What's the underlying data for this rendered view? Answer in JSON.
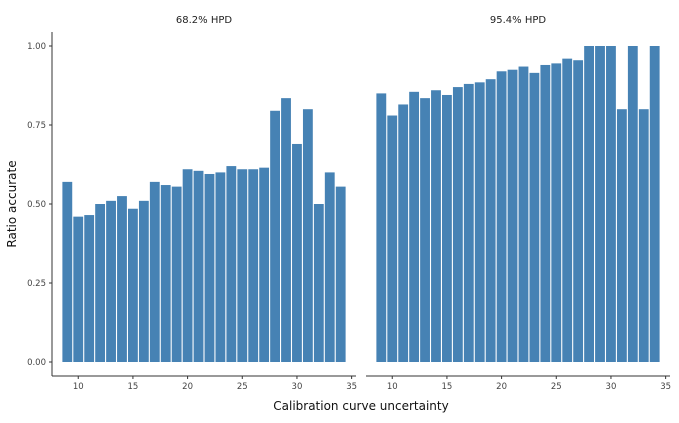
{
  "chart_data": {
    "type": "bar",
    "facets": [
      {
        "title": "68.2% HPD",
        "x": [
          9,
          10,
          11,
          12,
          13,
          14,
          15,
          16,
          17,
          18,
          19,
          20,
          21,
          22,
          23,
          24,
          25,
          26,
          27,
          28,
          29,
          30,
          31,
          32,
          33,
          34
        ],
        "values": [
          0.57,
          0.46,
          0.465,
          0.5,
          0.51,
          0.525,
          0.485,
          0.51,
          0.57,
          0.56,
          0.555,
          0.61,
          0.605,
          0.595,
          0.6,
          0.62,
          0.61,
          0.61,
          0.615,
          0.795,
          0.835,
          0.69,
          0.8,
          0.5,
          0.6,
          0.555
        ]
      },
      {
        "title": "95.4% HPD",
        "x": [
          9,
          10,
          11,
          12,
          13,
          14,
          15,
          16,
          17,
          18,
          19,
          20,
          21,
          22,
          23,
          24,
          25,
          26,
          27,
          28,
          29,
          30,
          31,
          32,
          33,
          34
        ],
        "values": [
          0.85,
          0.78,
          0.815,
          0.855,
          0.835,
          0.86,
          0.845,
          0.87,
          0.88,
          0.885,
          0.895,
          0.92,
          0.925,
          0.935,
          0.915,
          0.94,
          0.945,
          0.96,
          0.955,
          1.0,
          1.0,
          1.0,
          0.8,
          1.0,
          0.8,
          1.0
        ]
      }
    ],
    "xlabel": "Calibration curve uncertainty",
    "ylabel": "Ratio accurate",
    "x_ticks": [
      10,
      15,
      20,
      25,
      30,
      35
    ],
    "y_ticks": [
      "0.00",
      "0.25",
      "0.50",
      "0.75",
      "1.00"
    ],
    "xlim": [
      7.6,
      35.4
    ],
    "ylim": [
      0,
      1
    ],
    "bar_color": "#4682b4",
    "grid": false,
    "legend": "none"
  }
}
